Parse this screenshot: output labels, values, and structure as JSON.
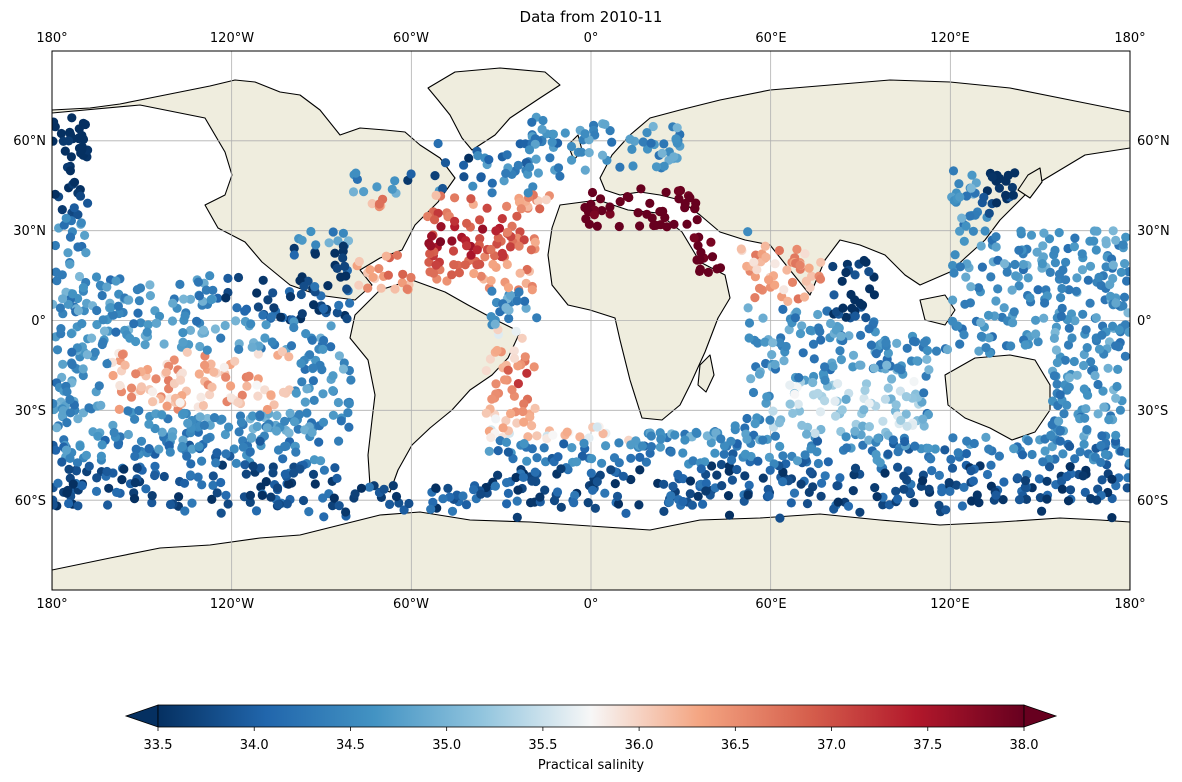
{
  "title": "Data from 2010-11",
  "map": {
    "projection": "PlateCarree",
    "extent": {
      "lon": [
        -180,
        180
      ],
      "lat": [
        -90,
        90
      ]
    },
    "ocean_color": "#ffffff",
    "land_color": "#efedde",
    "coastline_color": "#000000",
    "gridlines": true,
    "lon_ticks": [
      {
        "value": -180,
        "label": "180°"
      },
      {
        "value": -120,
        "label": "120°W"
      },
      {
        "value": -60,
        "label": "60°W"
      },
      {
        "value": 0,
        "label": "0°"
      },
      {
        "value": 60,
        "label": "60°E"
      },
      {
        "value": 120,
        "label": "120°E"
      },
      {
        "value": 180,
        "label": "180°"
      }
    ],
    "lat_ticks": [
      {
        "value": 60,
        "label": "60°N"
      },
      {
        "value": 30,
        "label": "30°N"
      },
      {
        "value": 0,
        "label": "0°"
      },
      {
        "value": -30,
        "label": "30°S"
      },
      {
        "value": -60,
        "label": "60°S"
      }
    ]
  },
  "colorbar": {
    "label": "Practical salinity",
    "cmap": "RdBu_r",
    "range": [
      33.5,
      38.0
    ],
    "extend": "both",
    "ticks": [
      "33.5",
      "34.0",
      "34.5",
      "35.0",
      "35.5",
      "36.0",
      "36.5",
      "37.0",
      "37.5",
      "38.0"
    ]
  },
  "chart_data": {
    "type": "scatter",
    "title": "Data from 2010-11",
    "xlabel": "",
    "ylabel": "",
    "color_label": "Practical salinity",
    "xlim": [
      -180,
      180
    ],
    "ylim": [
      -90,
      90
    ],
    "clim": [
      33.5,
      38.0
    ],
    "region_summary": [
      {
        "lon": [
          -180,
          -120
        ],
        "lat": [
          35,
          60
        ],
        "salinity": 32.8
      },
      {
        "lon": [
          -75,
          -40
        ],
        "lat": [
          20,
          40
        ],
        "salinity": 37.1
      },
      {
        "lon": [
          -35,
          -5
        ],
        "lat": [
          -35,
          -5
        ],
        "salinity": 36.9
      },
      {
        "lon": [
          130,
          180
        ],
        "lat": [
          30,
          58
        ],
        "salinity": 33.4
      },
      {
        "lon": [
          -180,
          180
        ],
        "lat": [
          -60,
          -40
        ],
        "salinity": 34.1
      },
      {
        "lon": [
          15,
          35
        ],
        "lat": [
          32,
          42
        ],
        "salinity": 38.5
      }
    ]
  }
}
